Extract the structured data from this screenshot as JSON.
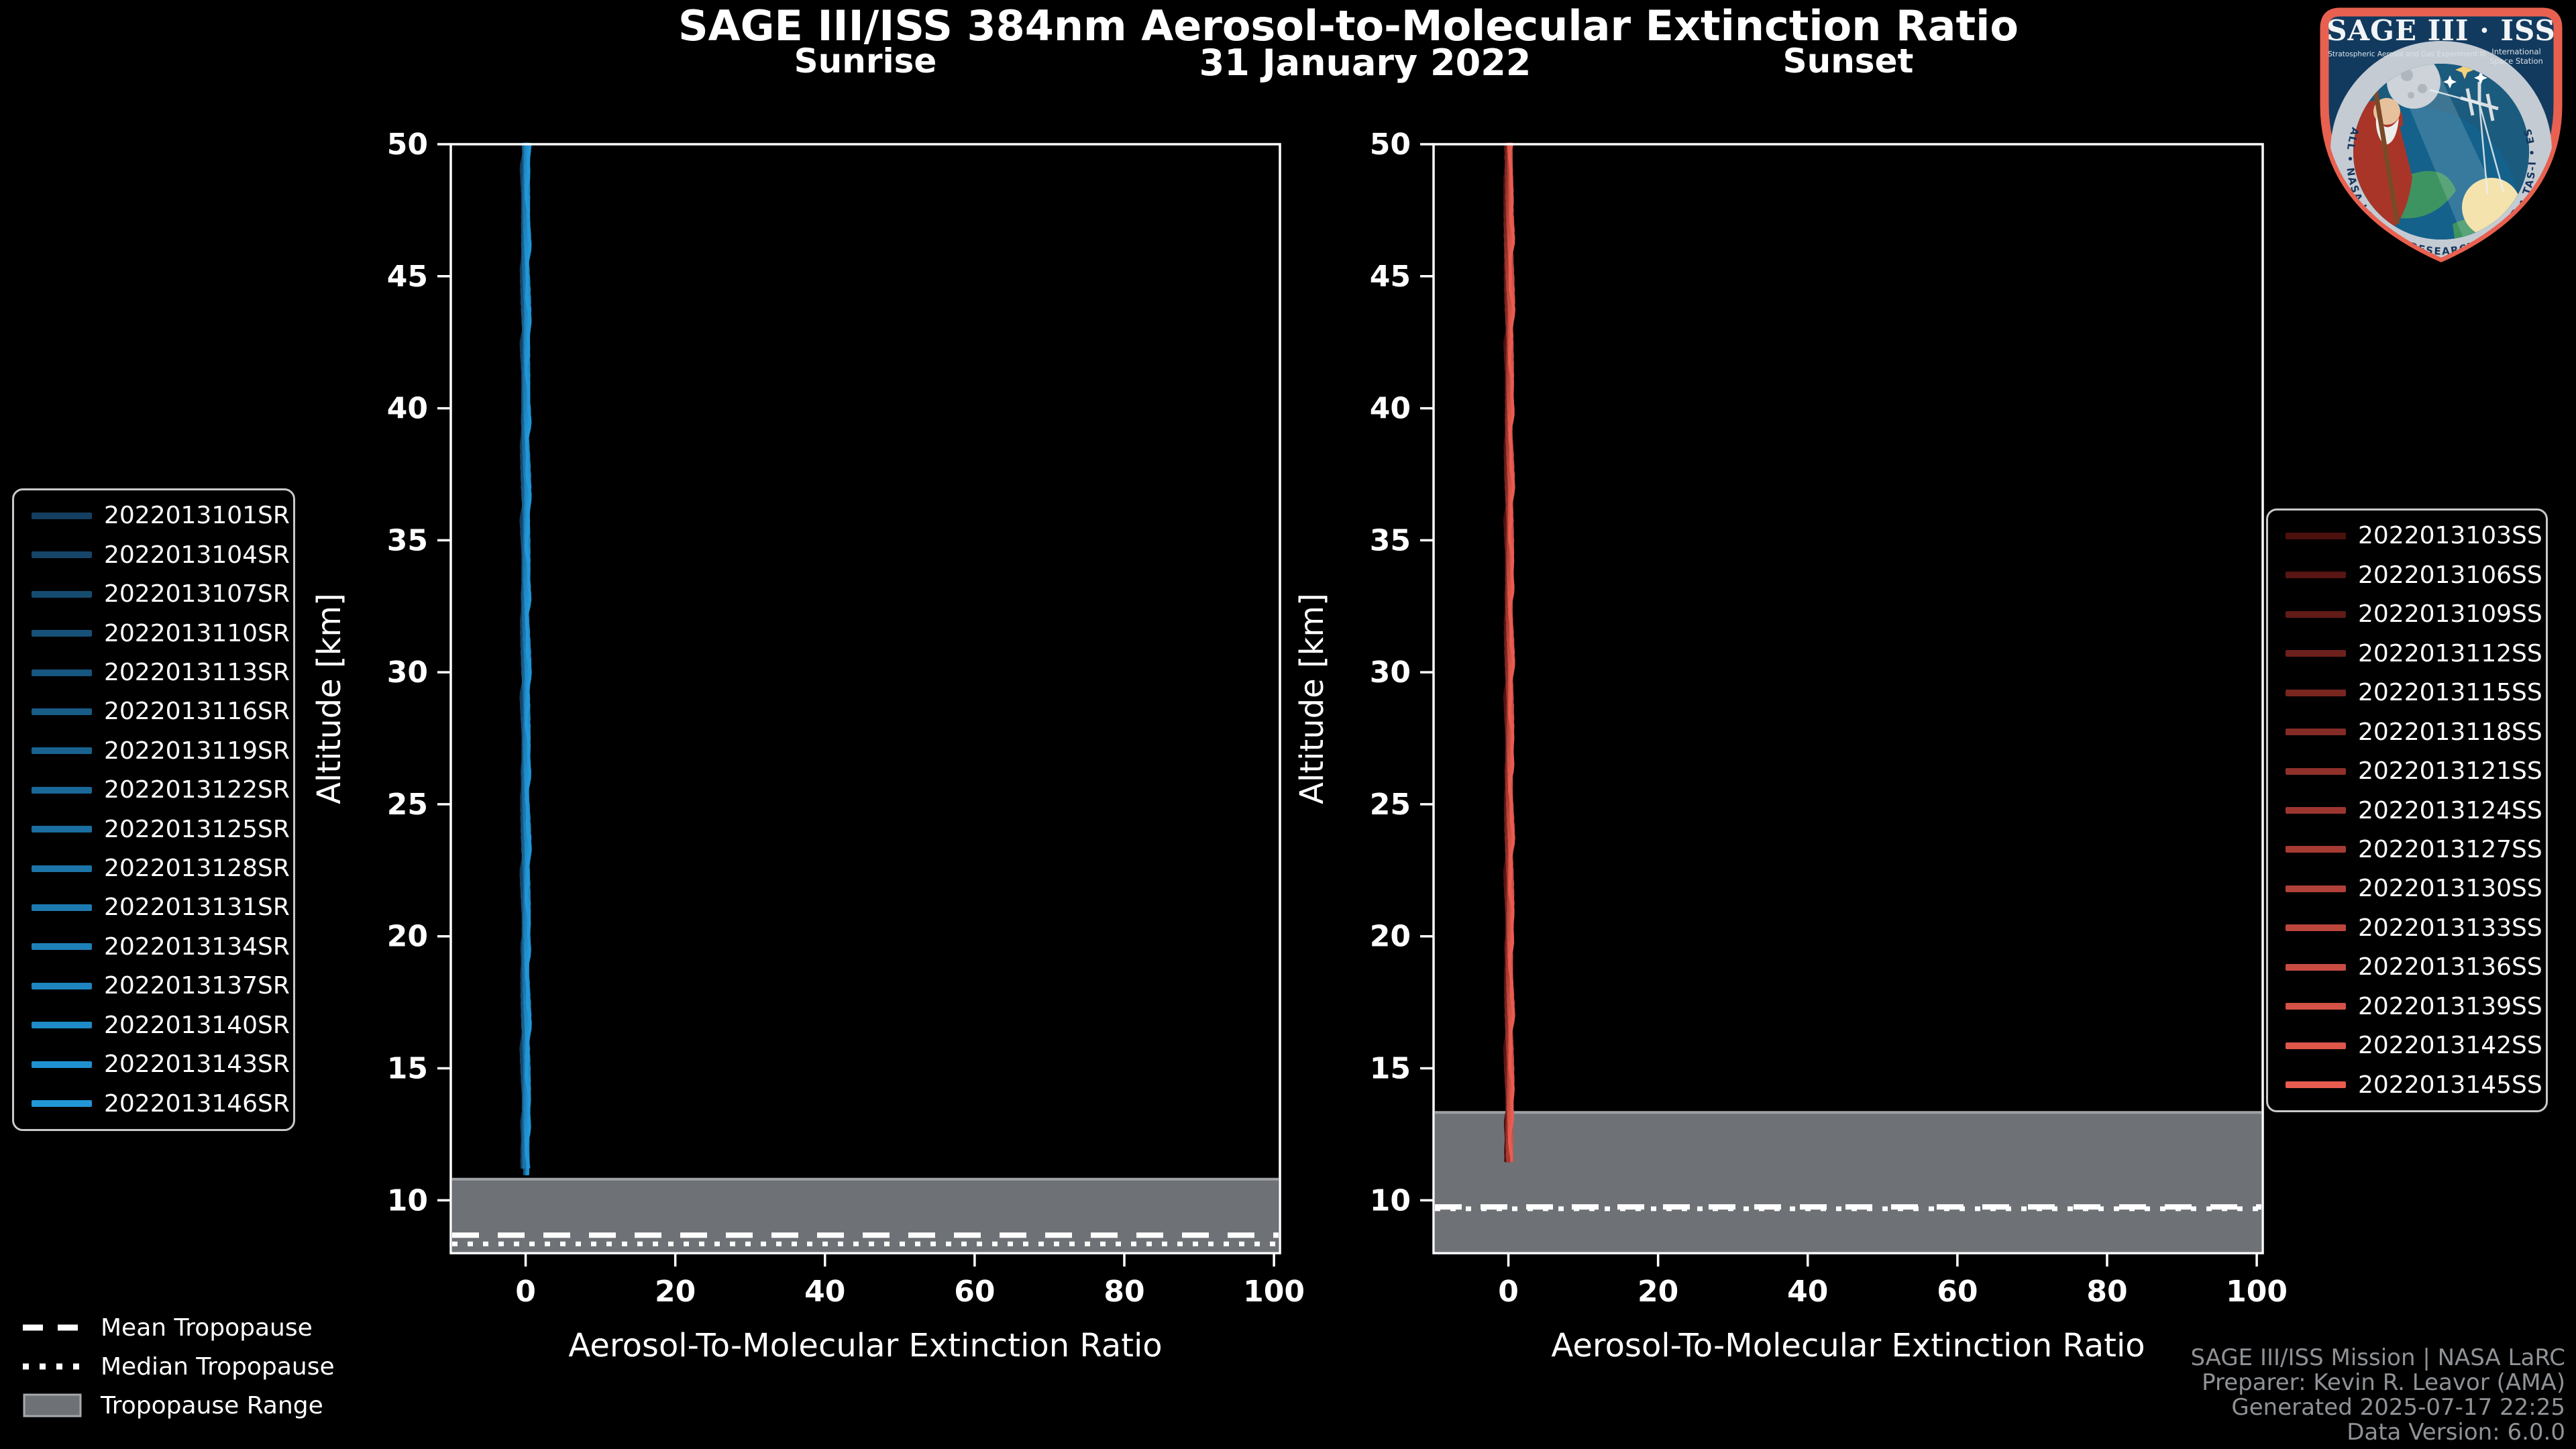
{
  "header": {
    "title": "SAGE III/ISS 384nm Aerosol-to-Molecular Extinction Ratio",
    "date": "31 January 2022"
  },
  "chart_data": [
    {
      "type": "line",
      "panel_title": "Sunrise",
      "xlabel": "Aerosol-To-Molecular Extinction Ratio",
      "ylabel": "Altitude [km]",
      "xlim": [
        -10,
        100.8
      ],
      "ylim": [
        8,
        50
      ],
      "xticks": [
        0,
        20,
        40,
        60,
        80,
        100
      ],
      "yticks": [
        10,
        15,
        20,
        25,
        30,
        35,
        40,
        45,
        50
      ],
      "profile": {
        "x_ratio": 0,
        "alt_top_km": 50,
        "alt_bottom_km": 10.9
      },
      "tropopause": {
        "mean_km": 8.68,
        "median_km": 8.35,
        "range_top_km": 10.8,
        "range_bottom_km": 8.0
      },
      "series": [
        {
          "name": "2022013101SR",
          "color": "#143F60"
        },
        {
          "name": "2022013104SR",
          "color": "#154568"
        },
        {
          "name": "2022013107SR",
          "color": "#164B70"
        },
        {
          "name": "2022013110SR",
          "color": "#175178"
        },
        {
          "name": "2022013113SR",
          "color": "#175680"
        },
        {
          "name": "2022013116SR",
          "color": "#185C88"
        },
        {
          "name": "2022013119SR",
          "color": "#196290"
        },
        {
          "name": "2022013122SR",
          "color": "#1A6898"
        },
        {
          "name": "2022013125SR",
          "color": "#1B6EA0"
        },
        {
          "name": "2022013128SR",
          "color": "#1C74A8"
        },
        {
          "name": "2022013131SR",
          "color": "#1D7AB0"
        },
        {
          "name": "2022013134SR",
          "color": "#1E80B8"
        },
        {
          "name": "2022013137SR",
          "color": "#1E85C0"
        },
        {
          "name": "2022013140SR",
          "color": "#1F8BC8"
        },
        {
          "name": "2022013143SR",
          "color": "#2091D0"
        },
        {
          "name": "2022013146SR",
          "color": "#2197D8"
        }
      ]
    },
    {
      "type": "line",
      "panel_title": "Sunset",
      "xlabel": "Aerosol-To-Molecular Extinction Ratio",
      "ylabel": "Altitude [km]",
      "xlim": [
        -10,
        100.8
      ],
      "ylim": [
        8,
        50
      ],
      "xticks": [
        0,
        20,
        40,
        60,
        80,
        100
      ],
      "yticks": [
        10,
        15,
        20,
        25,
        30,
        35,
        40,
        45,
        50
      ],
      "profile": {
        "x_ratio": 0.1,
        "alt_top_km": 50,
        "alt_bottom_km": 11.35
      },
      "tropopause": {
        "mean_km": 9.75,
        "median_km": 9.68,
        "range_top_km": 13.33,
        "range_bottom_km": 8.0
      },
      "series": [
        {
          "name": "2022013103SS",
          "color": "#4C100E"
        },
        {
          "name": "2022013106SS",
          "color": "#571513"
        },
        {
          "name": "2022013109SS",
          "color": "#621B17"
        },
        {
          "name": "2022013112SS",
          "color": "#6E201C"
        },
        {
          "name": "2022013115SS",
          "color": "#792621"
        },
        {
          "name": "2022013118SS",
          "color": "#842B25"
        },
        {
          "name": "2022013121SS",
          "color": "#8F312A"
        },
        {
          "name": "2022013124SS",
          "color": "#9B362F"
        },
        {
          "name": "2022013127SS",
          "color": "#A63B33"
        },
        {
          "name": "2022013130SS",
          "color": "#B14138"
        },
        {
          "name": "2022013133SS",
          "color": "#BC463C"
        },
        {
          "name": "2022013136SS",
          "color": "#C84C41"
        },
        {
          "name": "2022013139SS",
          "color": "#D35146"
        },
        {
          "name": "2022013142SS",
          "color": "#DE574A"
        },
        {
          "name": "2022013145SS",
          "color": "#E95C4F"
        }
      ]
    }
  ],
  "tropopause_legend": {
    "mean": "Mean Tropopause",
    "median": "Median Tropopause",
    "range": "Tropopause Range"
  },
  "footer": {
    "line1": "SAGE III/ISS Mission | NASA LaRC",
    "line2": "Preparer: Kevin R. Leavor (AMA)",
    "line3": "Generated 2025-07-17 22:25",
    "line4": "Data Version: 6.0.0"
  },
  "logo": {
    "title": "SAGE III · ISS",
    "subtitle_program": "Stratospheric Aerosol and Gas Experiment III",
    "subtitle_station_1": "International",
    "subtitle_station_2": "Space Station",
    "ring_text": "BALL • NASA LANGLEY RESEARCH CENTER • TAS-I • ESA"
  },
  "colors": {
    "background": "#000000",
    "spine": "#FFFFFF",
    "band": "#6E7277",
    "band_edge": "#9EA2A6",
    "legend_border": "#C9C9C9",
    "footer_text": "#8F9296",
    "sunrise_line": "#1C95D4",
    "sunset_line": "#E85C4F",
    "logo_border": "#E8604F",
    "logo_navy": "#123A5E",
    "logo_ring": "#C4CBD3",
    "logo_ocean": "#14618C",
    "logo_land": "#3E9460",
    "logo_sun": "#F5E3AE",
    "logo_moon": "#CDD3D8",
    "logo_robe": "#A93529"
  }
}
